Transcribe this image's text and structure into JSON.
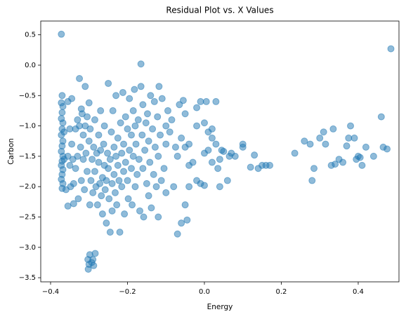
{
  "chart_data": {
    "type": "scatter",
    "title": "Residual Plot vs. X Values",
    "x_label": "Energy",
    "y_label": "Carbon",
    "color": "#1f77b4",
    "alpha": 0.5,
    "grid": false,
    "xlim": [
      -0.4256,
      0.506
    ],
    "ylim": [
      -3.568,
      0.727
    ],
    "xticks": [
      {
        "value": -0.4,
        "label": "−0.4"
      },
      {
        "value": -0.2,
        "label": "−0.2"
      },
      {
        "value": 0,
        "label": "0.0"
      },
      0.2,
      0.4
    ],
    "yticks": [
      0.5,
      {
        "value": 0,
        "label": "0.0"
      },
      {
        "value": -0.5,
        "label": "−0.5"
      },
      {
        "value": -1,
        "label": "−1.0"
      },
      {
        "value": -1.5,
        "label": "−1.5"
      },
      {
        "value": -2,
        "label": "−2.0"
      },
      {
        "value": -2.5,
        "label": "−2.5"
      },
      {
        "value": -3,
        "label": "−3.0"
      },
      {
        "value": -3.5,
        "label": "−3.5"
      }
    ],
    "x": [
      -0.372,
      -0.37,
      -0.372,
      -0.368,
      -0.37,
      -0.372,
      -0.368,
      -0.37,
      -0.372,
      -0.368,
      -0.37,
      -0.372,
      -0.368,
      -0.37,
      -0.372,
      -0.368,
      -0.37,
      -0.372,
      -0.368,
      -0.37,
      -0.365,
      -0.365,
      -0.36,
      -0.355,
      -0.355,
      -0.355,
      -0.35,
      -0.35,
      -0.348,
      -0.345,
      -0.345,
      -0.342,
      -0.34,
      -0.34,
      -0.335,
      -0.335,
      -0.33,
      -0.33,
      -0.328,
      -0.325,
      -0.325,
      -0.322,
      -0.32,
      -0.32,
      -0.318,
      -0.315,
      -0.315,
      -0.312,
      -0.31,
      -0.31,
      -0.308,
      -0.305,
      -0.305,
      -0.303,
      -0.3,
      -0.302,
      -0.298,
      -0.293,
      -0.288,
      -0.284,
      -0.29,
      -0.298,
      -0.3,
      -0.3,
      -0.297,
      -0.295,
      -0.292,
      -0.29,
      -0.288,
      -0.285,
      -0.285,
      -0.282,
      -0.28,
      -0.278,
      -0.275,
      -0.275,
      -0.272,
      -0.27,
      -0.27,
      -0.268,
      -0.265,
      -0.265,
      -0.262,
      -0.26,
      -0.26,
      -0.258,
      -0.255,
      -0.255,
      -0.252,
      -0.25,
      -0.25,
      -0.248,
      -0.245,
      -0.245,
      -0.242,
      -0.24,
      -0.24,
      -0.238,
      -0.235,
      -0.235,
      -0.232,
      -0.23,
      -0.23,
      -0.228,
      -0.225,
      -0.225,
      -0.222,
      -0.22,
      -0.218,
      -0.215,
      -0.215,
      -0.212,
      -0.21,
      -0.21,
      -0.208,
      -0.205,
      -0.205,
      -0.2,
      -0.2,
      -0.198,
      -0.195,
      -0.195,
      -0.19,
      -0.19,
      -0.188,
      -0.185,
      -0.185,
      -0.182,
      -0.18,
      -0.18,
      -0.178,
      -0.175,
      -0.172,
      -0.17,
      -0.168,
      -0.165,
      -0.165,
      -0.162,
      -0.16,
      -0.16,
      -0.158,
      -0.155,
      -0.152,
      -0.15,
      -0.148,
      -0.145,
      -0.145,
      -0.142,
      -0.14,
      -0.138,
      -0.135,
      -0.132,
      -0.13,
      -0.128,
      -0.125,
      -0.122,
      -0.12,
      -0.12,
      -0.118,
      -0.115,
      -0.112,
      -0.11,
      -0.105,
      -0.1,
      -0.1,
      -0.1,
      -0.095,
      -0.09,
      -0.085,
      -0.08,
      -0.075,
      -0.07,
      -0.07,
      -0.065,
      -0.06,
      -0.06,
      -0.055,
      -0.05,
      -0.05,
      -0.05,
      -0.045,
      -0.04,
      -0.04,
      -0.04,
      -0.03,
      -0.02,
      -0.02,
      -0.02,
      -0.01,
      -0.01,
      0.0,
      0.0,
      0.0,
      0.005,
      0.01,
      0.01,
      0.02,
      0.02,
      0.02,
      0.03,
      0.03,
      0.035,
      0.04,
      0.04,
      0.045,
      0.05,
      0.06,
      0.065,
      0.07,
      0.08,
      0.1,
      0.1,
      0.12,
      0.13,
      0.14,
      0.15,
      0.16,
      0.17,
      0.235,
      0.26,
      0.275,
      0.28,
      0.285,
      0.3,
      0.31,
      0.315,
      0.33,
      0.335,
      0.34,
      0.35,
      0.36,
      0.37,
      0.375,
      0.38,
      0.39,
      0.395,
      0.4,
      0.405,
      0.41,
      0.42,
      0.44,
      0.46,
      0.465,
      0.475,
      0.485
    ],
    "values": [
      0.51,
      -0.5,
      -0.62,
      -0.68,
      -0.78,
      -0.88,
      -0.95,
      -1.05,
      -1.15,
      -1.25,
      -1.33,
      -1.42,
      -1.5,
      -1.58,
      -1.65,
      -1.72,
      -1.8,
      -1.88,
      -1.95,
      -2.03,
      -1.1,
      -1.55,
      -2.05,
      -0.6,
      -1.5,
      -2.32,
      -1.05,
      -1.65,
      -2.0,
      -0.55,
      -1.3,
      -1.55,
      -1.95,
      -2.28,
      -1.05,
      -1.7,
      -0.9,
      -1.5,
      -2.2,
      -0.22,
      -1.0,
      -1.35,
      -0.72,
      -1.9,
      -0.8,
      -1.15,
      -1.55,
      -2.05,
      -0.35,
      -1.0,
      -1.45,
      -0.85,
      -1.75,
      -3.2,
      -3.28,
      -3.36,
      -3.12,
      -3.25,
      -3.3,
      -3.1,
      -3.2,
      -2.3,
      -1.25,
      -0.62,
      -1.05,
      -1.9,
      -1.55,
      -2.1,
      -1.35,
      -0.9,
      -1.75,
      -2.0,
      -1.45,
      -2.3,
      -1.6,
      -1.15,
      -1.95,
      -0.75,
      -1.4,
      -2.15,
      -1.85,
      -2.45,
      -1.3,
      -1.0,
      -1.65,
      -2.05,
      -1.9,
      -2.6,
      -1.45,
      -0.3,
      -1.7,
      -2.2,
      -1.55,
      -2.75,
      -1.1,
      -1.95,
      -2.4,
      -0.75,
      -1.35,
      -1.8,
      -2.1,
      -0.5,
      -1.5,
      -2.3,
      -1.2,
      -1.65,
      -1.9,
      -2.75,
      -0.95,
      -1.45,
      -2.0,
      -0.45,
      -1.3,
      -1.75,
      -2.45,
      -0.85,
      -1.6,
      -1.05,
      -1.9,
      -2.2,
      -0.55,
      -1.4,
      -1.15,
      -1.7,
      -2.3,
      -0.75,
      -1.5,
      -0.4,
      -1.0,
      -2.0,
      -1.3,
      -1.8,
      -0.9,
      -1.55,
      -2.4,
      -0.35,
      0.02,
      -1.15,
      -0.65,
      -1.7,
      -2.5,
      -1.4,
      -0.95,
      -1.95,
      -0.8,
      -1.25,
      -2.15,
      -1.6,
      -0.5,
      -2.35,
      -1.05,
      -1.8,
      -0.6,
      -1.35,
      -2.0,
      -0.85,
      -1.5,
      -2.5,
      -0.35,
      -1.15,
      -1.9,
      -0.55,
      -1.7,
      -1.3,
      -1.0,
      -2.1,
      -0.75,
      -1.1,
      -0.9,
      -2.0,
      -1.35,
      -2.78,
      -1.5,
      -0.65,
      -1.2,
      -2.6,
      -0.58,
      -2.3,
      -1.35,
      -0.8,
      -2.55,
      -1.65,
      -1.3,
      -2.0,
      -1.6,
      -1.0,
      -1.9,
      -0.7,
      -0.6,
      -1.95,
      -0.95,
      -1.45,
      -1.98,
      -0.6,
      -1.1,
      -1.4,
      -1.05,
      -1.6,
      -1.2,
      -1.3,
      -0.6,
      -1.7,
      -1.55,
      -2.0,
      -1.4,
      -1.42,
      -1.9,
      -1.5,
      -1.45,
      -1.5,
      -1.3,
      -1.35,
      -1.68,
      -1.48,
      -1.7,
      -1.65,
      -1.65,
      -1.65,
      -1.45,
      -1.25,
      -1.3,
      -1.9,
      -1.7,
      -1.2,
      -1.1,
      -1.3,
      -1.65,
      -1.05,
      -1.63,
      -1.55,
      -1.6,
      -1.33,
      -1.2,
      -1.0,
      -1.2,
      -1.55,
      -1.5,
      -1.52,
      -1.65,
      -1.35,
      -1.5,
      -0.85,
      -1.35,
      -1.38,
      0.27
    ]
  }
}
